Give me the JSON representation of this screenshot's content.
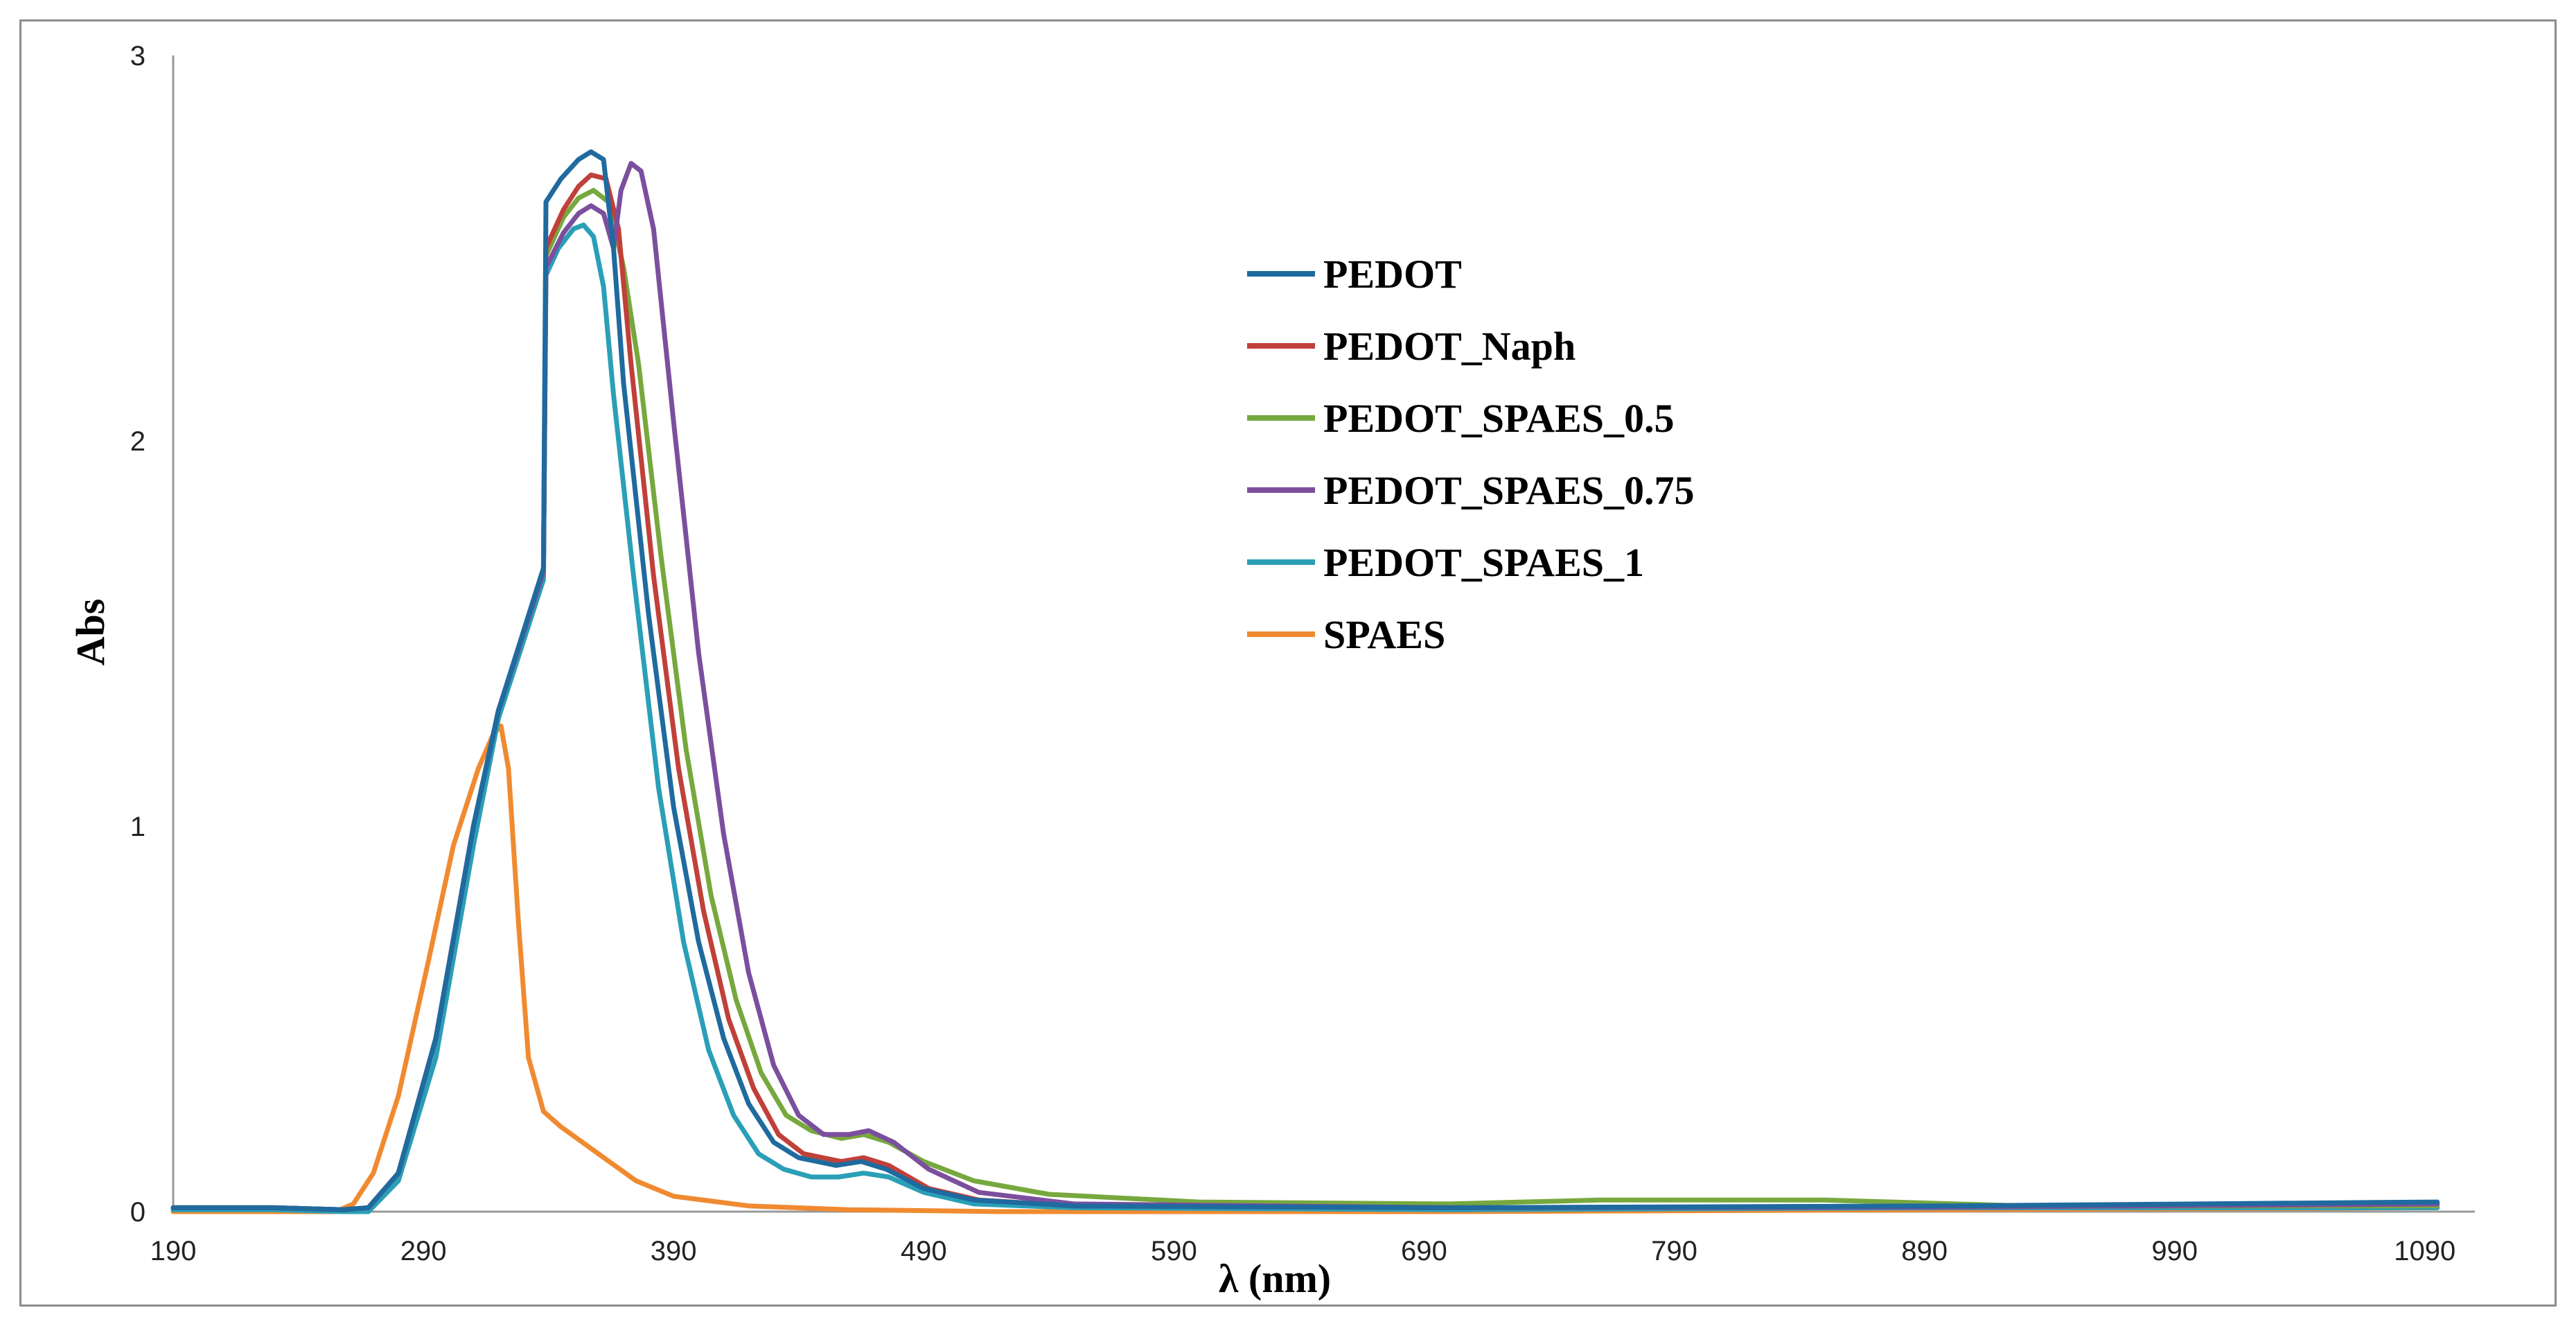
{
  "chart_data": {
    "type": "line",
    "title": "",
    "xlabel": "λ (nm)",
    "ylabel": "Abs",
    "xlim": [
      190,
      1110
    ],
    "ylim": [
      0,
      3
    ],
    "x_ticks": [
      190,
      290,
      390,
      490,
      590,
      690,
      790,
      890,
      990,
      1090
    ],
    "y_ticks": [
      0,
      1,
      2,
      3
    ],
    "grid": false,
    "legend_position": "upper-center-right",
    "series": [
      {
        "name": "PEDOT",
        "color": "#1f6a9e",
        "points": [
          [
            190,
            0.01
          ],
          [
            230,
            0.01
          ],
          [
            258,
            0.005
          ],
          [
            268,
            0.01
          ],
          [
            280,
            0.1
          ],
          [
            295,
            0.45
          ],
          [
            310,
            1.0
          ],
          [
            320,
            1.3
          ],
          [
            338,
            1.67
          ],
          [
            339,
            2.62
          ],
          [
            345,
            2.68
          ],
          [
            352,
            2.73
          ],
          [
            357,
            2.75
          ],
          [
            362,
            2.73
          ],
          [
            366,
            2.5
          ],
          [
            370,
            2.15
          ],
          [
            380,
            1.55
          ],
          [
            390,
            1.05
          ],
          [
            400,
            0.7
          ],
          [
            410,
            0.45
          ],
          [
            420,
            0.28
          ],
          [
            430,
            0.18
          ],
          [
            440,
            0.14
          ],
          [
            455,
            0.12
          ],
          [
            465,
            0.13
          ],
          [
            475,
            0.11
          ],
          [
            490,
            0.06
          ],
          [
            510,
            0.03
          ],
          [
            550,
            0.015
          ],
          [
            700,
            0.01
          ],
          [
            900,
            0.015
          ],
          [
            1095,
            0.025
          ]
        ]
      },
      {
        "name": "PEDOT_Naph",
        "color": "#c0403a",
        "points": [
          [
            190,
            0.01
          ],
          [
            230,
            0.01
          ],
          [
            258,
            0.005
          ],
          [
            268,
            0.01
          ],
          [
            280,
            0.1
          ],
          [
            295,
            0.45
          ],
          [
            310,
            1.0
          ],
          [
            320,
            1.3
          ],
          [
            338,
            1.66
          ],
          [
            339,
            2.5
          ],
          [
            346,
            2.6
          ],
          [
            352,
            2.66
          ],
          [
            357,
            2.69
          ],
          [
            363,
            2.68
          ],
          [
            368,
            2.55
          ],
          [
            373,
            2.2
          ],
          [
            382,
            1.65
          ],
          [
            392,
            1.15
          ],
          [
            402,
            0.78
          ],
          [
            412,
            0.5
          ],
          [
            422,
            0.32
          ],
          [
            432,
            0.2
          ],
          [
            442,
            0.15
          ],
          [
            457,
            0.13
          ],
          [
            466,
            0.14
          ],
          [
            476,
            0.12
          ],
          [
            492,
            0.06
          ],
          [
            512,
            0.03
          ],
          [
            550,
            0.015
          ],
          [
            700,
            0.01
          ],
          [
            900,
            0.012
          ],
          [
            1095,
            0.02
          ]
        ]
      },
      {
        "name": "PEDOT_SPAES_0.5",
        "color": "#77a83e",
        "points": [
          [
            190,
            0.01
          ],
          [
            230,
            0.01
          ],
          [
            258,
            0.005
          ],
          [
            268,
            0.01
          ],
          [
            280,
            0.1
          ],
          [
            295,
            0.45
          ],
          [
            310,
            1.0
          ],
          [
            320,
            1.3
          ],
          [
            338,
            1.66
          ],
          [
            339,
            2.48
          ],
          [
            346,
            2.58
          ],
          [
            352,
            2.63
          ],
          [
            358,
            2.65
          ],
          [
            364,
            2.62
          ],
          [
            370,
            2.45
          ],
          [
            376,
            2.2
          ],
          [
            385,
            1.7
          ],
          [
            395,
            1.2
          ],
          [
            405,
            0.82
          ],
          [
            415,
            0.55
          ],
          [
            425,
            0.36
          ],
          [
            435,
            0.25
          ],
          [
            445,
            0.21
          ],
          [
            457,
            0.19
          ],
          [
            466,
            0.2
          ],
          [
            476,
            0.18
          ],
          [
            490,
            0.13
          ],
          [
            510,
            0.08
          ],
          [
            540,
            0.045
          ],
          [
            600,
            0.025
          ],
          [
            700,
            0.02
          ],
          [
            760,
            0.03
          ],
          [
            850,
            0.03
          ],
          [
            930,
            0.015
          ],
          [
            1095,
            0.015
          ]
        ]
      },
      {
        "name": "PEDOT_SPAES_0.75",
        "color": "#7b4f9d",
        "points": [
          [
            190,
            0.01
          ],
          [
            230,
            0.01
          ],
          [
            258,
            0.005
          ],
          [
            268,
            0.01
          ],
          [
            280,
            0.1
          ],
          [
            295,
            0.45
          ],
          [
            310,
            1.0
          ],
          [
            320,
            1.3
          ],
          [
            338,
            1.66
          ],
          [
            339,
            2.45
          ],
          [
            346,
            2.54
          ],
          [
            352,
            2.59
          ],
          [
            357,
            2.61
          ],
          [
            362,
            2.59
          ],
          [
            366,
            2.5
          ],
          [
            369,
            2.65
          ],
          [
            373,
            2.72
          ],
          [
            377,
            2.7
          ],
          [
            382,
            2.55
          ],
          [
            390,
            2.05
          ],
          [
            400,
            1.45
          ],
          [
            410,
            0.98
          ],
          [
            420,
            0.62
          ],
          [
            430,
            0.38
          ],
          [
            440,
            0.25
          ],
          [
            450,
            0.2
          ],
          [
            460,
            0.2
          ],
          [
            468,
            0.21
          ],
          [
            478,
            0.18
          ],
          [
            492,
            0.11
          ],
          [
            512,
            0.05
          ],
          [
            550,
            0.02
          ],
          [
            700,
            0.01
          ],
          [
            900,
            0.012
          ],
          [
            1095,
            0.02
          ]
        ]
      },
      {
        "name": "PEDOT_SPAES_1",
        "color": "#2a9fb7",
        "points": [
          [
            190,
            0.005
          ],
          [
            230,
            0.005
          ],
          [
            258,
            0.0
          ],
          [
            268,
            0.0
          ],
          [
            280,
            0.08
          ],
          [
            295,
            0.4
          ],
          [
            310,
            0.95
          ],
          [
            320,
            1.28
          ],
          [
            338,
            1.64
          ],
          [
            339,
            2.43
          ],
          [
            344,
            2.5
          ],
          [
            350,
            2.55
          ],
          [
            354,
            2.56
          ],
          [
            358,
            2.53
          ],
          [
            362,
            2.4
          ],
          [
            366,
            2.12
          ],
          [
            374,
            1.65
          ],
          [
            384,
            1.1
          ],
          [
            394,
            0.7
          ],
          [
            404,
            0.42
          ],
          [
            414,
            0.25
          ],
          [
            424,
            0.15
          ],
          [
            434,
            0.11
          ],
          [
            445,
            0.09
          ],
          [
            456,
            0.09
          ],
          [
            466,
            0.1
          ],
          [
            476,
            0.09
          ],
          [
            490,
            0.05
          ],
          [
            510,
            0.02
          ],
          [
            550,
            0.01
          ],
          [
            700,
            0.005
          ],
          [
            900,
            0.01
          ],
          [
            1095,
            0.01
          ]
        ]
      },
      {
        "name": "SPAES",
        "color": "#f08a30",
        "points": [
          [
            190,
            0.0
          ],
          [
            230,
            0.0
          ],
          [
            255,
            0.0
          ],
          [
            262,
            0.02
          ],
          [
            270,
            0.1
          ],
          [
            280,
            0.3
          ],
          [
            292,
            0.65
          ],
          [
            302,
            0.95
          ],
          [
            312,
            1.15
          ],
          [
            318,
            1.24
          ],
          [
            321,
            1.26
          ],
          [
            324,
            1.15
          ],
          [
            328,
            0.75
          ],
          [
            332,
            0.4
          ],
          [
            338,
            0.26
          ],
          [
            345,
            0.22
          ],
          [
            360,
            0.15
          ],
          [
            375,
            0.08
          ],
          [
            390,
            0.04
          ],
          [
            420,
            0.015
          ],
          [
            460,
            0.005
          ],
          [
            520,
            0.0
          ],
          [
            700,
            0.0
          ],
          [
            900,
            0.005
          ],
          [
            1095,
            0.01
          ]
        ]
      }
    ]
  }
}
